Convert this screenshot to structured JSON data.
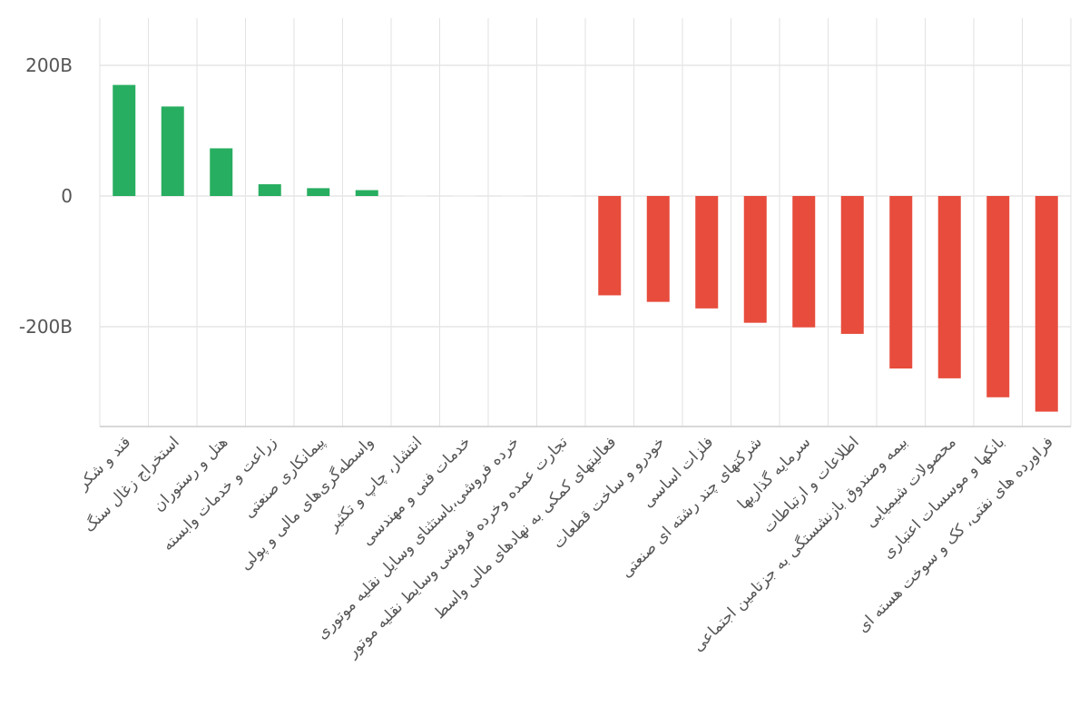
{
  "chart_data": {
    "type": "bar",
    "categories": [
      "قند و شکر",
      "استخراج زغال سنگ",
      "هتل و رستوران",
      "زراعت و خدمات وابسته",
      "پیمانکاری صنعتی",
      "واسطه‌گری‌های مالی و پولی",
      "انتشار، چاپ و تکثیر",
      "خدمات فنی و مهندسی",
      "خرده فروشی،باستثنای وسایل نقلیه موتوری",
      "تجارت عمده وخرده فروشی وسایط نقلیه موتور",
      "فعالیتهای کمکی به نهادهای مالی واسط",
      "خودرو و ساخت قطعات",
      "فلزات اساسی",
      "شرکتهای چند رشته ای صنعتی",
      "سرمایه گذاریها",
      "اطلاعات و ارتباطات",
      "بیمه وصندوق بازنشستگی به جزتامین اجتماعی",
      "محصولات شیمیایی",
      "بانکها و موسسات اعتباری",
      "فراورده های نفتی، کک و سوخت هسته ای"
    ],
    "values": [
      170,
      137,
      73,
      18,
      12,
      9,
      0,
      0,
      0,
      0,
      -152,
      -162,
      -172,
      -194,
      -201,
      -211,
      -264,
      -279,
      -308,
      -330
    ],
    "unit": "B",
    "yticks": [
      {
        "value": 200,
        "label": "200B"
      },
      {
        "value": 0,
        "label": "0"
      },
      {
        "value": -200,
        "label": "-200B"
      }
    ],
    "ylim": [
      -355,
      270
    ],
    "colors": {
      "positive": "#27ae60",
      "negative": "#e74c3c"
    },
    "title": "",
    "xlabel": "",
    "ylabel": "",
    "grid": true
  }
}
